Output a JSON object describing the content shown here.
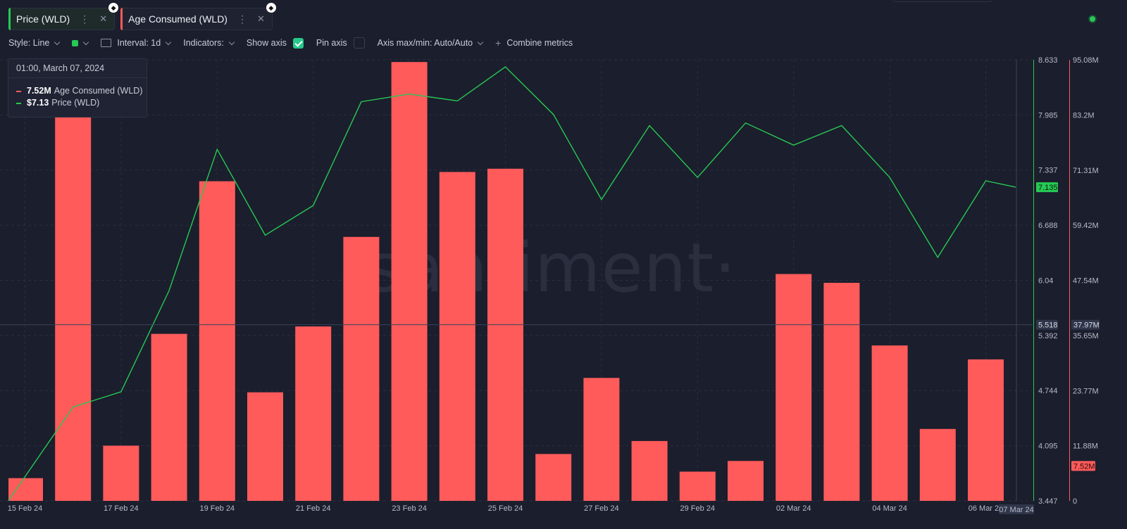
{
  "tabs": [
    {
      "label": "Price (WLD)",
      "color": "#26c953",
      "active": true
    },
    {
      "label": "Age Consumed (WLD)",
      "color": "#ff5b5b",
      "active": false
    }
  ],
  "toolbar": {
    "style": "Style: Line",
    "interval": "Interval: 1d",
    "indicators": "Indicators:",
    "show_axis": "Show axis",
    "pin_axis": "Pin axis",
    "axis_maxmin": "Axis max/min: Auto/Auto",
    "combine": "Combine metrics"
  },
  "tooltip": {
    "date": "01:00, March 07, 2024",
    "rows": [
      {
        "value": "7.52M",
        "label": "Age Consumed (WLD)",
        "color": "#ff5b5b"
      },
      {
        "value": "$7.13",
        "label": "Price (WLD)",
        "color": "#26c953"
      }
    ]
  },
  "watermark": "santiment·",
  "chart_data": {
    "type": "bar",
    "x": [
      "15 Feb 24",
      "16 Feb 24",
      "17 Feb 24",
      "18 Feb 24",
      "19 Feb 24",
      "20 Feb 24",
      "21 Feb 24",
      "22 Feb 24",
      "23 Feb 24",
      "24 Feb 24",
      "25 Feb 24",
      "26 Feb 24",
      "27 Feb 24",
      "28 Feb 24",
      "29 Feb 24",
      "01 Mar 24",
      "02 Mar 24",
      "03 Mar 24",
      "04 Mar 24",
      "05 Mar 24",
      "06 Mar 24",
      "07 Mar 24"
    ],
    "x_tick_labels": [
      "15 Feb 24",
      "17 Feb 24",
      "19 Feb 24",
      "21 Feb 24",
      "23 Feb 24",
      "25 Feb 24",
      "27 Feb 24",
      "29 Feb 24",
      "02 Mar 24",
      "04 Mar 24",
      "06 Mar 24"
    ],
    "x_last_label": "07 Mar 24",
    "series": [
      {
        "name": "Age Consumed (WLD)",
        "type": "bar",
        "color": "#ff5b5b",
        "axis": "right",
        "values": [
          4.9,
          86.5,
          11.9,
          36.0,
          68.9,
          23.4,
          37.6,
          56.9,
          94.6,
          70.9,
          71.6,
          10.1,
          26.5,
          12.9,
          6.3,
          8.6,
          48.9,
          47.0,
          33.5,
          15.5,
          30.5,
          7.52
        ]
      },
      {
        "name": "Price (WLD)",
        "type": "line",
        "color": "#26c953",
        "axis": "left",
        "values": [
          3.45,
          4.55,
          4.73,
          5.92,
          7.58,
          6.57,
          6.92,
          8.14,
          8.23,
          8.15,
          8.55,
          7.99,
          6.99,
          7.86,
          7.25,
          7.89,
          7.63,
          7.86,
          7.25,
          6.31,
          7.21,
          7.135
        ]
      }
    ],
    "left_axis": {
      "ticks": [
        3.447,
        4.095,
        4.744,
        5.392,
        6.04,
        6.688,
        7.337,
        7.985,
        8.633
      ],
      "tick_labels": [
        "3.447",
        "4.095",
        "4.744",
        "5.392",
        "6.04",
        "6.688",
        "7.337",
        "7.985",
        "8.633"
      ],
      "range": [
        3.447,
        8.633
      ],
      "last_label": "7.135",
      "crosshair_label": "5.518"
    },
    "right_axis": {
      "ticks": [
        0,
        11.88,
        23.77,
        35.65,
        47.54,
        59.42,
        71.31,
        83.2,
        95.08
      ],
      "tick_labels": [
        "0",
        "11.88M",
        "23.77M",
        "35.65M",
        "47.54M",
        "59.42M",
        "71.31M",
        "83.2M",
        "95.08M"
      ],
      "range": [
        0,
        95.08
      ],
      "last_label": "7.52M",
      "crosshair_label": "37.97M"
    },
    "crosshair": {
      "x": "07 Mar 24",
      "price": 5.518,
      "age": 37.97
    },
    "grid": true,
    "legend": "top-left"
  }
}
